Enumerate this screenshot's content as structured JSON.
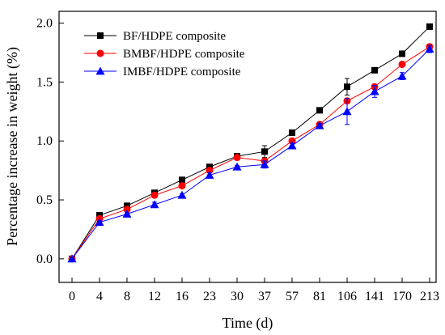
{
  "chart_data": {
    "type": "line",
    "categories": [
      "0",
      "4",
      "8",
      "12",
      "16",
      "23",
      "30",
      "37",
      "57",
      "81",
      "106",
      "141",
      "170",
      "213"
    ],
    "xlabel": "Time (d)",
    "ylabel": "Percentage increase in weight (%)",
    "ylim": [
      -0.2,
      2.1
    ],
    "yticks": [
      "0.0",
      "0.5",
      "1.0",
      "1.5",
      "2.0"
    ],
    "ytick_values": [
      0,
      0.5,
      1.0,
      1.5,
      2.0
    ],
    "grid": false,
    "legend_position": "top-left",
    "series": [
      {
        "name": "BF/HDPE composite",
        "color": "#000000",
        "marker": "square",
        "values": [
          0.0,
          0.37,
          0.45,
          0.56,
          0.67,
          0.78,
          0.87,
          0.91,
          1.07,
          1.26,
          1.46,
          1.6,
          1.74,
          1.97
        ],
        "errors": [
          0,
          0.01,
          0.01,
          0.01,
          0.01,
          0.01,
          0.01,
          0.05,
          0.02,
          0.02,
          0.07,
          0.01,
          0.02,
          0.01
        ]
      },
      {
        "name": "BMBF/HDPE composite",
        "color": "#ff0000",
        "marker": "circle",
        "values": [
          0.0,
          0.34,
          0.42,
          0.54,
          0.62,
          0.75,
          0.86,
          0.83,
          1.0,
          1.14,
          1.34,
          1.46,
          1.65,
          1.8
        ],
        "errors": [
          0,
          0.01,
          0.01,
          0.01,
          0.01,
          0.01,
          0.01,
          0.01,
          0.01,
          0.02,
          0.02,
          0.02,
          0.01,
          0.02
        ]
      },
      {
        "name": "IMBF/HDPE composite",
        "color": "#0000ff",
        "marker": "triangle",
        "values": [
          0.0,
          0.31,
          0.38,
          0.46,
          0.54,
          0.71,
          0.78,
          0.8,
          0.96,
          1.13,
          1.25,
          1.42,
          1.55,
          1.78
        ],
        "errors": [
          0,
          0.01,
          0.01,
          0.02,
          0.01,
          0.02,
          0.01,
          0.03,
          0.02,
          0.02,
          0.11,
          0.05,
          0.03,
          0.03
        ]
      }
    ]
  }
}
